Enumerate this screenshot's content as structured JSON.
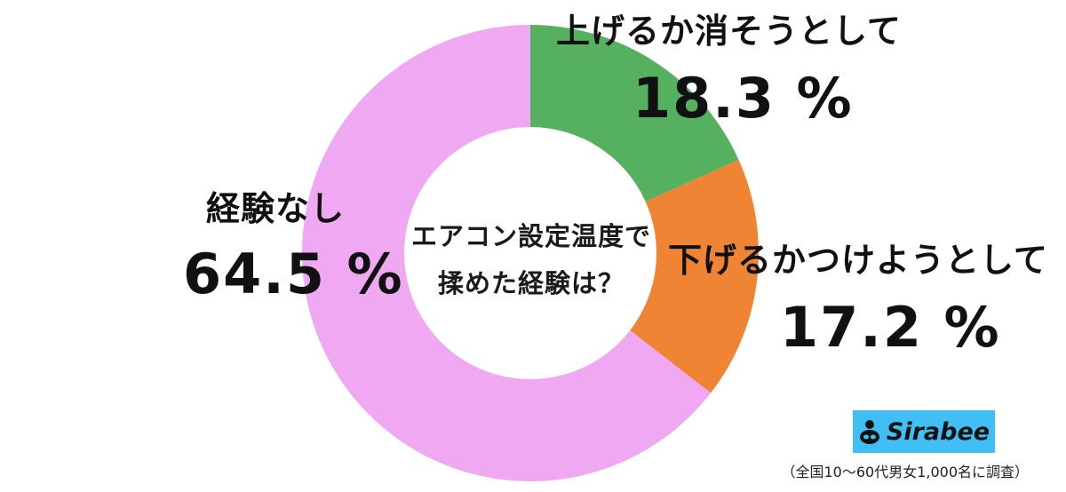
{
  "chart_data": {
    "type": "pie",
    "title": "エアコン設定温度で揉めた経験は？",
    "title_lines": [
      "エアコン設定温度で",
      "揉めた経験は？"
    ],
    "unit": "%",
    "series": [
      {
        "name": "上げるか消そうとして",
        "value": 18.3,
        "value_label": "18.3 %",
        "color": "#55b060"
      },
      {
        "name": "下げるかつけようとして",
        "value": 17.2,
        "value_label": "17.2 %",
        "color": "#ef8534"
      },
      {
        "name": "経験なし",
        "value": 64.5,
        "value_label": "64.5 %",
        "color": "#f0a8f2"
      }
    ]
  },
  "branding": {
    "logo_text": "Sirabee",
    "logo_color": "#41bff4"
  },
  "footnote": "（全国10〜60代男女1,000名に調査）"
}
